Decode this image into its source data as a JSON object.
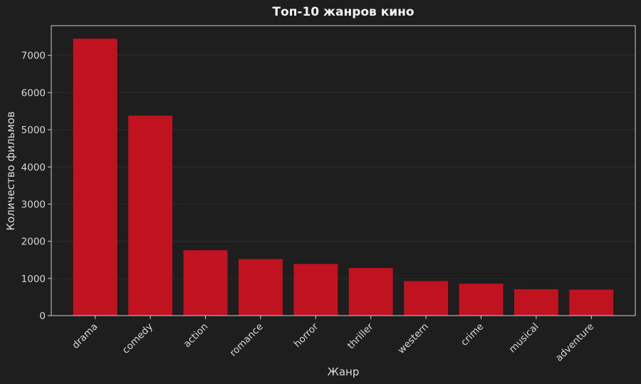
{
  "chart_data": {
    "type": "bar",
    "title": "Топ-10 жанров кино",
    "xlabel": "Жанр",
    "ylabel": "Количество фильмов",
    "categories": [
      "drama",
      "comedy",
      "action",
      "romance",
      "horror",
      "thriller",
      "western",
      "crime",
      "musical",
      "adventure"
    ],
    "values": [
      7450,
      5380,
      1760,
      1520,
      1390,
      1280,
      930,
      860,
      710,
      700
    ],
    "ylim": [
      0,
      7800
    ],
    "yticks": [
      0,
      1000,
      2000,
      3000,
      4000,
      5000,
      6000,
      7000
    ],
    "grid": true,
    "legend": "none",
    "colors": {
      "bar": "#c0121f",
      "background": "#1e1e1e",
      "grid": "#2c2c2c",
      "text": "#dcdcdc"
    }
  }
}
